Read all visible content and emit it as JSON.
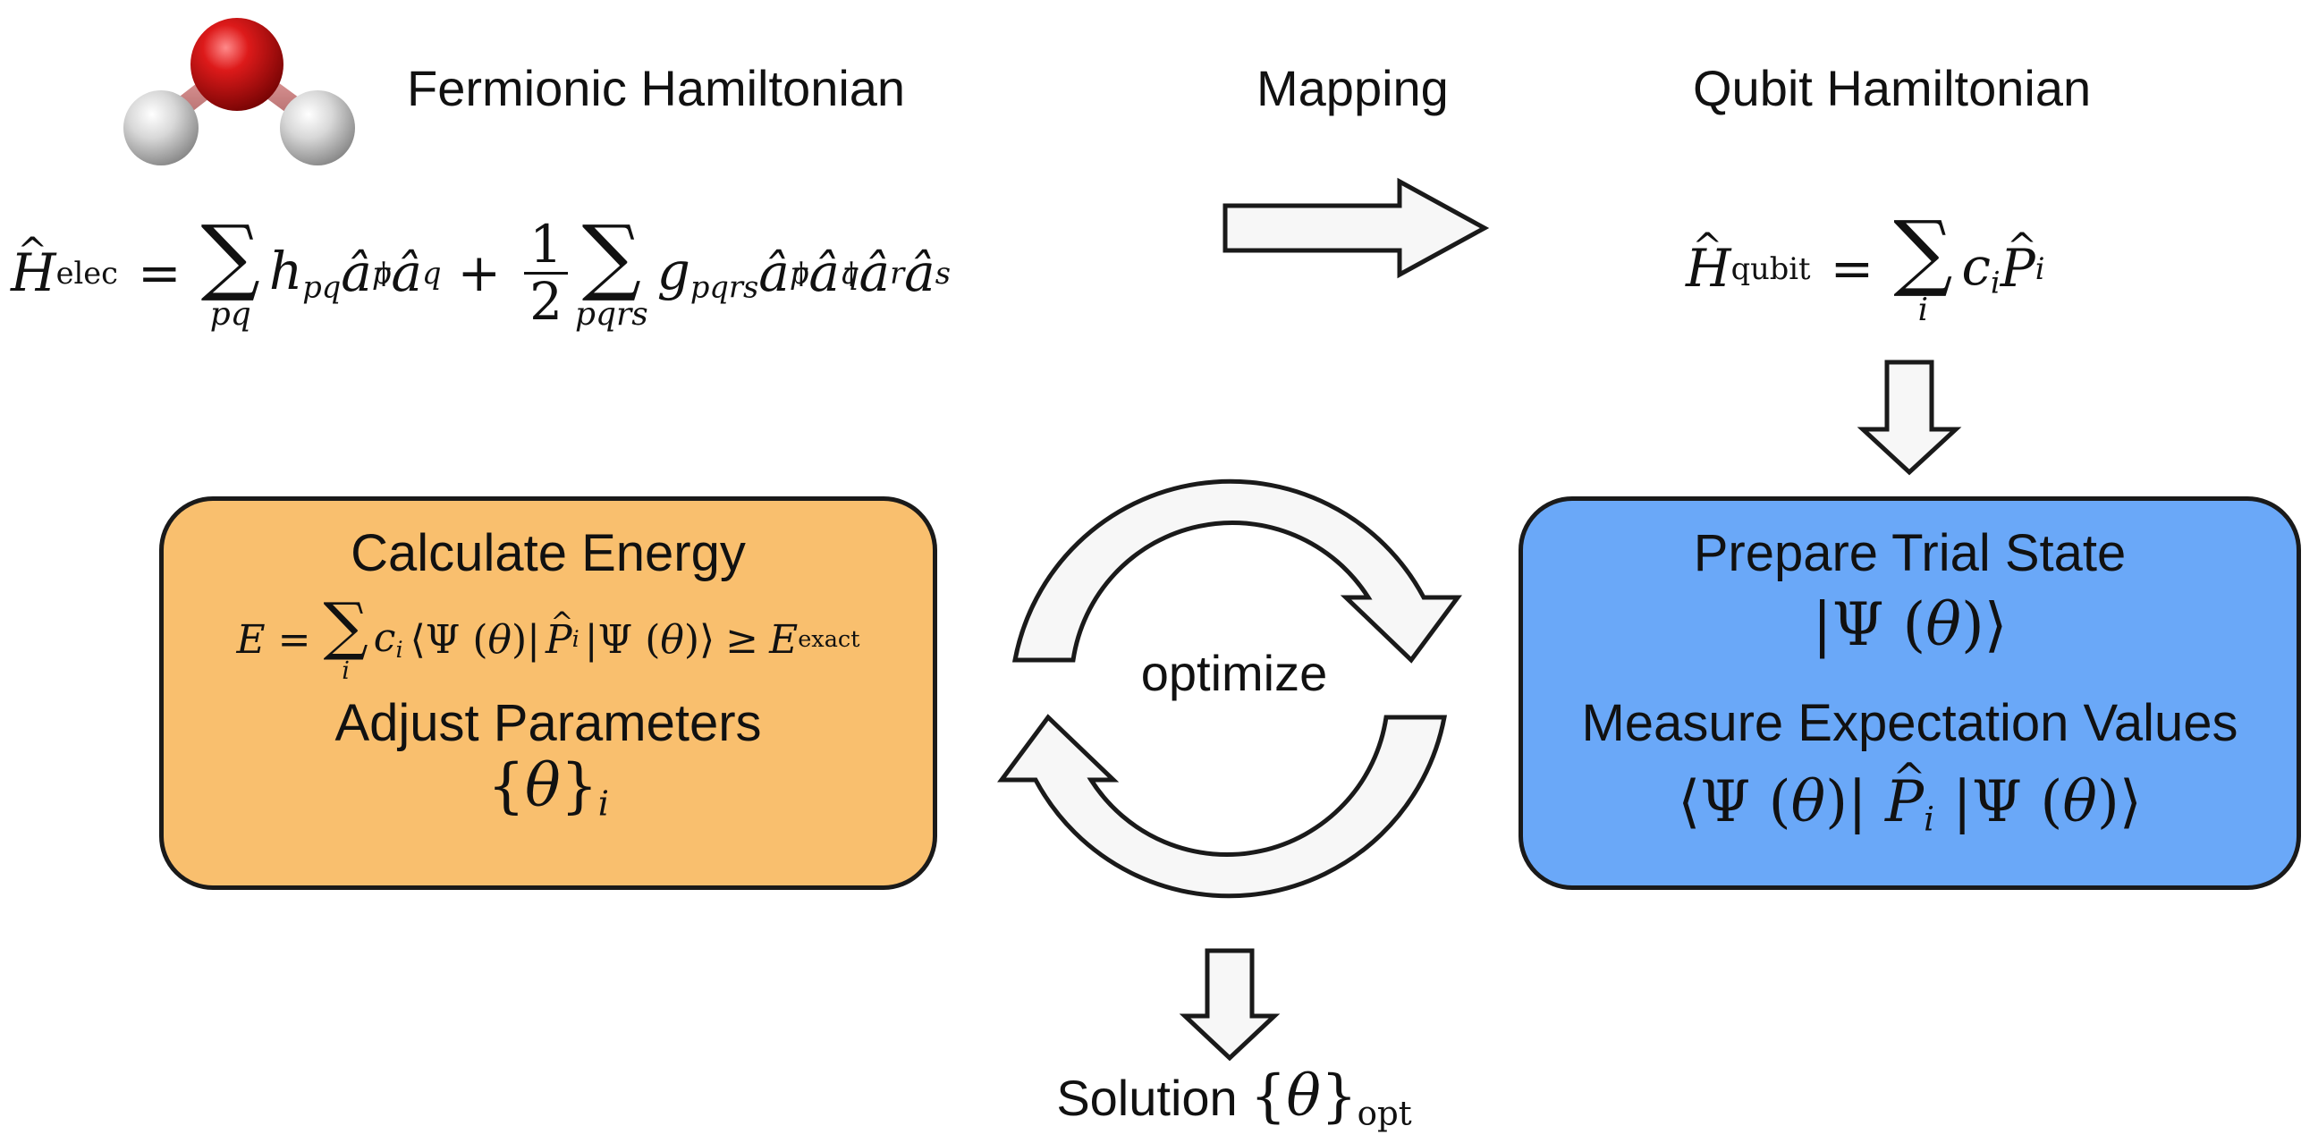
{
  "labels": {
    "fermionic_hamiltonian": "Fermionic Hamiltonian",
    "mapping": "Mapping",
    "qubit_hamiltonian": "Qubit Hamiltonian",
    "optimize": "optimize",
    "solution": "Solution"
  },
  "equations": {
    "elec_symbol": "H",
    "elec_sub": "elec",
    "qubit_symbol": "H",
    "qubit_sub": "qubit",
    "sum_pq": "pq",
    "sum_pqrs": "pqrs",
    "sum_i": "i",
    "half_num": "1",
    "half_den": "2",
    "exact_sub": "exact",
    "opt_sub": "opt"
  },
  "classical_box": {
    "title": "Calculate Energy",
    "subtitle": "Adjust Parameters"
  },
  "quantum_box": {
    "title": "Prepare Trial State",
    "subtitle": "Measure Expectation Values"
  },
  "colors": {
    "classical_box": "#f9bf6e",
    "quantum_box": "#6aa8f8",
    "arrow_fill": "#f7f7f7",
    "outline": "#1a1a1a",
    "oxygen": "#cc1515",
    "hydrogen": "#d4d4d4"
  }
}
